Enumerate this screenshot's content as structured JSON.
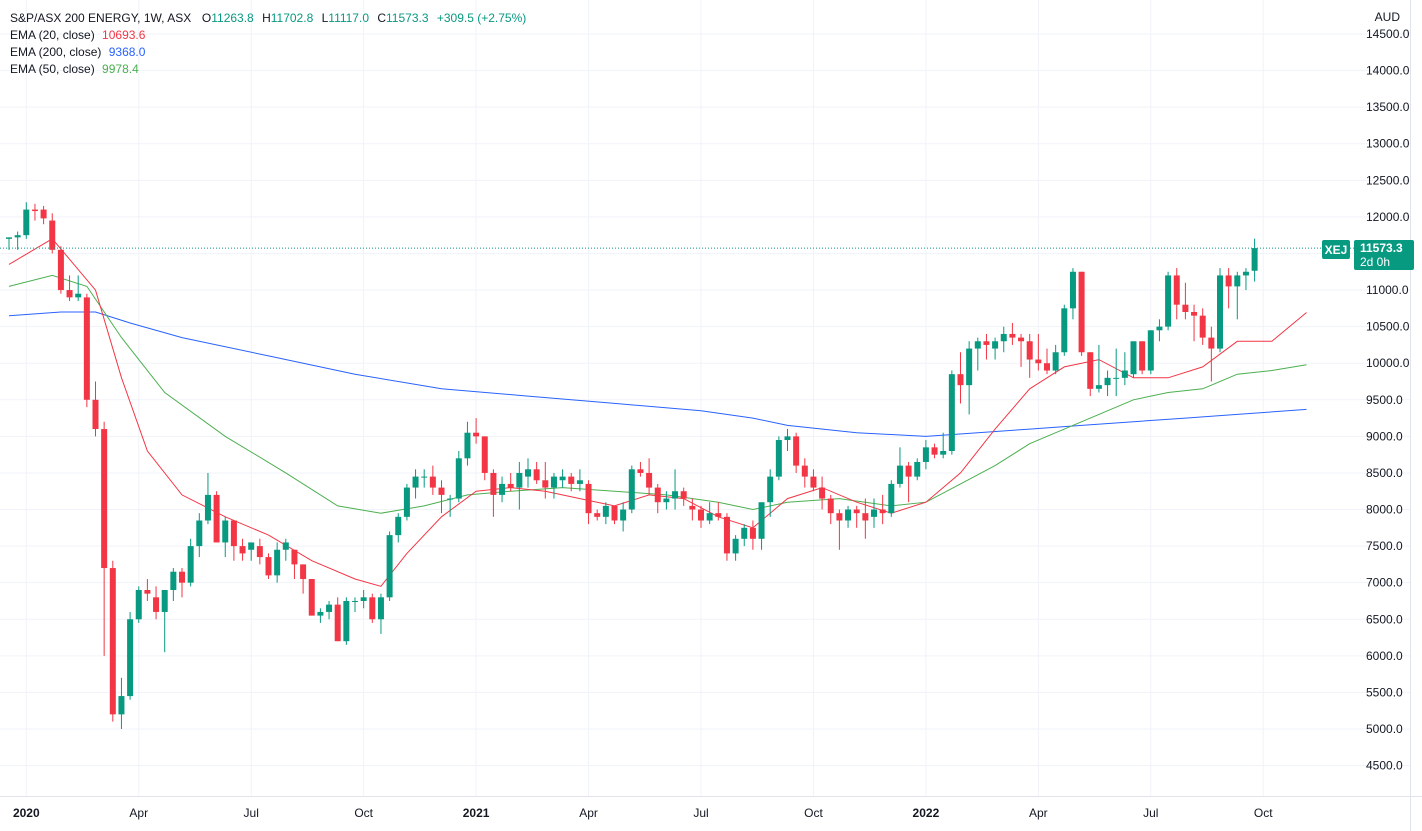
{
  "header": {
    "symbol_line": "S&P/ASX 200 ENERGY, 1W, ASX",
    "ohlc": [
      {
        "key": "O",
        "value": "11263.8"
      },
      {
        "key": "H",
        "value": "11702.8"
      },
      {
        "key": "L",
        "value": "11117.0"
      },
      {
        "key": "C",
        "value": "11573.3"
      }
    ],
    "change": "+309.5 (+2.75%)"
  },
  "indicators": [
    {
      "label": "EMA (20, close)",
      "value": "10693.6",
      "color": "#f23645"
    },
    {
      "label": "EMA (200, close)",
      "value": "9368.0",
      "color": "#2962ff"
    },
    {
      "label": "EMA (50, close)",
      "value": "9978.4",
      "color": "#4caf50"
    }
  ],
  "currency": "AUD",
  "price_tag": {
    "symbol": "XEJ",
    "price": "11573.3",
    "countdown": "2d 0h"
  },
  "colors": {
    "up": "#089981",
    "down": "#f23645",
    "ema20": "#f23645",
    "ema200": "#2962ff",
    "ema50": "#4caf50",
    "grid": "#f0f3fa"
  },
  "chart_data": {
    "type": "candlestick",
    "title": "S&P/ASX 200 ENERGY, 1W, ASX",
    "y_label": "AUD",
    "ylim": [
      4200,
      14650
    ],
    "y_ticks": [
      "4500.0",
      "5000.0",
      "5500.0",
      "6000.0",
      "6500.0",
      "7000.0",
      "7500.0",
      "8000.0",
      "8500.0",
      "9000.0",
      "9500.0",
      "10000.0",
      "10500.0",
      "11000.0",
      "11500.0",
      "12000.0",
      "12500.0",
      "13000.0",
      "13500.0",
      "14000.0",
      "14500.0"
    ],
    "x_ticks": [
      {
        "label": "2020",
        "week": 2,
        "bold": true
      },
      {
        "label": "Apr",
        "week": 15,
        "bold": false
      },
      {
        "label": "Jul",
        "week": 28,
        "bold": false
      },
      {
        "label": "Oct",
        "week": 41,
        "bold": false
      },
      {
        "label": "2021",
        "week": 54,
        "bold": true
      },
      {
        "label": "Apr",
        "week": 67,
        "bold": false
      },
      {
        "label": "Jul",
        "week": 80,
        "bold": false
      },
      {
        "label": "Oct",
        "week": 93,
        "bold": false
      },
      {
        "label": "2022",
        "week": 106,
        "bold": true
      },
      {
        "label": "Apr",
        "week": 119,
        "bold": false
      },
      {
        "label": "Jul",
        "week": 132,
        "bold": false
      },
      {
        "label": "Oct",
        "week": 145,
        "bold": false
      }
    ],
    "candles": [
      [
        11700,
        11720,
        11550,
        11720
      ],
      [
        11720,
        11800,
        11550,
        11750
      ],
      [
        11750,
        12200,
        11700,
        12100
      ],
      [
        12100,
        12180,
        11950,
        12080
      ],
      [
        12100,
        12150,
        11900,
        11980
      ],
      [
        11950,
        12050,
        11500,
        11550
      ],
      [
        11550,
        11600,
        10950,
        11000
      ],
      [
        11000,
        11200,
        10850,
        10900
      ],
      [
        10900,
        11200,
        10850,
        10950
      ],
      [
        10900,
        10950,
        9400,
        9500
      ],
      [
        9500,
        9750,
        9000,
        9100
      ],
      [
        9100,
        9200,
        6000,
        7200
      ],
      [
        7200,
        7300,
        5100,
        5200
      ],
      [
        5200,
        5700,
        5000,
        5450
      ],
      [
        5450,
        6600,
        5400,
        6500
      ],
      [
        6500,
        6950,
        6450,
        6900
      ],
      [
        6900,
        7050,
        6750,
        6850
      ],
      [
        6800,
        6950,
        6500,
        6600
      ],
      [
        6600,
        6900,
        6050,
        6900
      ],
      [
        6900,
        7200,
        6750,
        7150
      ],
      [
        7150,
        7200,
        6800,
        7000
      ],
      [
        7000,
        7600,
        6950,
        7500
      ],
      [
        7500,
        7950,
        7350,
        7850
      ],
      [
        7850,
        8500,
        7800,
        8200
      ],
      [
        8200,
        8250,
        7550,
        7550
      ],
      [
        7550,
        7900,
        7350,
        7850
      ],
      [
        7850,
        7850,
        7300,
        7500
      ],
      [
        7500,
        7600,
        7300,
        7400
      ],
      [
        7450,
        7550,
        7300,
        7550
      ],
      [
        7500,
        7600,
        7250,
        7350
      ],
      [
        7350,
        7400,
        7050,
        7100
      ],
      [
        7100,
        7550,
        7000,
        7450
      ],
      [
        7450,
        7600,
        7300,
        7550
      ],
      [
        7450,
        7450,
        7050,
        7250
      ],
      [
        7250,
        7250,
        6850,
        7050
      ],
      [
        7050,
        7050,
        6550,
        6550
      ],
      [
        6550,
        6650,
        6450,
        6600
      ],
      [
        6600,
        6750,
        6500,
        6700
      ],
      [
        6700,
        6800,
        6200,
        6200
      ],
      [
        6200,
        6800,
        6150,
        6750
      ],
      [
        6750,
        6800,
        6600,
        6750
      ],
      [
        6750,
        6900,
        6650,
        6800
      ],
      [
        6800,
        6850,
        6450,
        6500
      ],
      [
        6500,
        6850,
        6300,
        6800
      ],
      [
        6800,
        7700,
        6750,
        7650
      ],
      [
        7650,
        7950,
        7550,
        7900
      ],
      [
        7900,
        8350,
        7850,
        8300
      ],
      [
        8300,
        8550,
        8150,
        8450
      ],
      [
        8450,
        8550,
        8300,
        8450
      ],
      [
        8450,
        8600,
        8200,
        8300
      ],
      [
        8300,
        8400,
        7950,
        8200
      ],
      [
        8150,
        8200,
        7900,
        8150
      ],
      [
        8150,
        8800,
        8100,
        8700
      ],
      [
        8700,
        9200,
        8600,
        9050
      ],
      [
        9050,
        9250,
        8900,
        9000
      ],
      [
        9000,
        9000,
        8400,
        8500
      ],
      [
        8500,
        8550,
        7900,
        8200
      ],
      [
        8200,
        8450,
        8100,
        8350
      ],
      [
        8350,
        8500,
        8250,
        8300
      ],
      [
        8300,
        8650,
        8000,
        8500
      ],
      [
        8450,
        8700,
        8300,
        8550
      ],
      [
        8550,
        8650,
        8350,
        8400
      ],
      [
        8400,
        8650,
        8150,
        8300
      ],
      [
        8300,
        8500,
        8150,
        8450
      ],
      [
        8400,
        8550,
        8300,
        8450
      ],
      [
        8450,
        8500,
        8250,
        8350
      ],
      [
        8350,
        8550,
        8250,
        8400
      ],
      [
        8350,
        8400,
        7800,
        7950
      ],
      [
        7950,
        8000,
        7850,
        7900
      ],
      [
        7900,
        8100,
        7800,
        8050
      ],
      [
        8050,
        8050,
        7800,
        7850
      ],
      [
        7850,
        8100,
        7700,
        8000
      ],
      [
        8000,
        8600,
        7950,
        8550
      ],
      [
        8550,
        8650,
        8450,
        8500
      ],
      [
        8500,
        8700,
        8200,
        8300
      ],
      [
        8300,
        8350,
        7950,
        8100
      ],
      [
        8100,
        8250,
        8000,
        8150
      ],
      [
        8150,
        8550,
        8000,
        8250
      ],
      [
        8250,
        8300,
        8050,
        8150
      ],
      [
        8050,
        8150,
        7850,
        8000
      ],
      [
        8000,
        8050,
        7750,
        7850
      ],
      [
        7850,
        8100,
        7800,
        7950
      ],
      [
        7950,
        8100,
        7850,
        7900
      ],
      [
        7900,
        7950,
        7300,
        7400
      ],
      [
        7400,
        7650,
        7300,
        7600
      ],
      [
        7600,
        7800,
        7500,
        7750
      ],
      [
        7750,
        7850,
        7450,
        7600
      ],
      [
        7600,
        8000,
        7450,
        8100
      ],
      [
        8100,
        8550,
        7900,
        8450
      ],
      [
        8450,
        9000,
        8400,
        8950
      ],
      [
        8950,
        9100,
        8800,
        9000
      ],
      [
        9000,
        9050,
        8500,
        8600
      ],
      [
        8600,
        8700,
        8300,
        8450
      ],
      [
        8450,
        8550,
        8250,
        8300
      ],
      [
        8300,
        8450,
        8000,
        8150
      ],
      [
        8150,
        8200,
        7800,
        7950
      ],
      [
        7950,
        8000,
        7450,
        7850
      ],
      [
        7850,
        8050,
        7750,
        8000
      ],
      [
        8000,
        8050,
        7750,
        7950
      ],
      [
        7950,
        8150,
        7600,
        7850
      ],
      [
        7900,
        8150,
        7750,
        8000
      ],
      [
        8000,
        8200,
        7800,
        7950
      ],
      [
        7950,
        8400,
        7900,
        8350
      ],
      [
        8350,
        8850,
        8300,
        8600
      ],
      [
        8600,
        8650,
        8100,
        8450
      ],
      [
        8450,
        8700,
        8400,
        8650
      ],
      [
        8650,
        8950,
        8550,
        8850
      ],
      [
        8850,
        8900,
        8700,
        8750
      ],
      [
        8750,
        9050,
        8700,
        8800
      ],
      [
        8800,
        9900,
        8750,
        9850
      ],
      [
        9850,
        10150,
        9450,
        9700
      ],
      [
        9700,
        10300,
        9300,
        10200
      ],
      [
        10200,
        10350,
        9900,
        10300
      ],
      [
        10300,
        10400,
        10050,
        10250
      ],
      [
        10200,
        10350,
        10050,
        10300
      ],
      [
        10300,
        10500,
        10150,
        10400
      ],
      [
        10400,
        10550,
        10250,
        10350
      ],
      [
        10350,
        10400,
        9950,
        10300
      ],
      [
        10300,
        10400,
        9800,
        10050
      ],
      [
        10050,
        10400,
        9900,
        10000
      ],
      [
        10000,
        10200,
        9850,
        9900
      ],
      [
        9900,
        10250,
        9850,
        10150
      ],
      [
        10150,
        10800,
        10100,
        10750
      ],
      [
        10750,
        11300,
        10600,
        11250
      ],
      [
        11250,
        11250,
        10100,
        10150
      ],
      [
        10150,
        10150,
        9550,
        9650
      ],
      [
        9650,
        10250,
        9600,
        9700
      ],
      [
        9700,
        9900,
        9550,
        9800
      ],
      [
        9800,
        10200,
        9550,
        9800
      ],
      [
        9800,
        10150,
        9700,
        9900
      ],
      [
        9850,
        10250,
        9800,
        10300
      ],
      [
        10300,
        10300,
        9850,
        9900
      ],
      [
        9900,
        10450,
        9850,
        10450
      ],
      [
        10450,
        10600,
        10300,
        10500
      ],
      [
        10500,
        11250,
        10450,
        11200
      ],
      [
        11200,
        11300,
        10600,
        10800
      ],
      [
        10800,
        11100,
        10600,
        10700
      ],
      [
        10700,
        10800,
        10300,
        10650
      ],
      [
        10650,
        10750,
        10250,
        10350
      ],
      [
        10350,
        10500,
        9750,
        10200
      ],
      [
        10200,
        11300,
        10150,
        11200
      ],
      [
        11200,
        11300,
        10750,
        11050
      ],
      [
        11050,
        11250,
        10600,
        11200
      ],
      [
        11200,
        11300,
        11000,
        11250
      ],
      [
        11263.8,
        11702.8,
        11117.0,
        11573.3
      ]
    ],
    "ema20": [
      [
        0,
        11350
      ],
      [
        5,
        11700
      ],
      [
        10,
        11000
      ],
      [
        13,
        9800
      ],
      [
        16,
        8800
      ],
      [
        20,
        8200
      ],
      [
        25,
        7900
      ],
      [
        30,
        7650
      ],
      [
        35,
        7300
      ],
      [
        40,
        7050
      ],
      [
        43,
        6950
      ],
      [
        46,
        7400
      ],
      [
        50,
        7900
      ],
      [
        54,
        8250
      ],
      [
        58,
        8300
      ],
      [
        62,
        8250
      ],
      [
        66,
        8150
      ],
      [
        70,
        8050
      ],
      [
        74,
        8200
      ],
      [
        78,
        8150
      ],
      [
        82,
        7900
      ],
      [
        86,
        7750
      ],
      [
        90,
        8150
      ],
      [
        94,
        8300
      ],
      [
        98,
        8100
      ],
      [
        102,
        7950
      ],
      [
        106,
        8100
      ],
      [
        110,
        8500
      ],
      [
        114,
        9100
      ],
      [
        118,
        9650
      ],
      [
        122,
        9950
      ],
      [
        126,
        10050
      ],
      [
        130,
        9800
      ],
      [
        134,
        9800
      ],
      [
        138,
        9950
      ],
      [
        142,
        10300
      ],
      [
        146,
        10300
      ],
      [
        150,
        10693.6
      ]
    ],
    "ema50": [
      [
        0,
        11050
      ],
      [
        5,
        11200
      ],
      [
        9,
        11050
      ],
      [
        13,
        10350
      ],
      [
        18,
        9600
      ],
      [
        25,
        9000
      ],
      [
        32,
        8500
      ],
      [
        38,
        8050
      ],
      [
        43,
        7950
      ],
      [
        48,
        8050
      ],
      [
        53,
        8200
      ],
      [
        58,
        8250
      ],
      [
        64,
        8300
      ],
      [
        70,
        8250
      ],
      [
        76,
        8200
      ],
      [
        82,
        8100
      ],
      [
        86,
        8000
      ],
      [
        90,
        8100
      ],
      [
        96,
        8150
      ],
      [
        102,
        8050
      ],
      [
        106,
        8100
      ],
      [
        110,
        8350
      ],
      [
        114,
        8600
      ],
      [
        118,
        8900
      ],
      [
        122,
        9100
      ],
      [
        126,
        9300
      ],
      [
        130,
        9500
      ],
      [
        134,
        9600
      ],
      [
        138,
        9650
      ],
      [
        142,
        9850
      ],
      [
        146,
        9900
      ],
      [
        150,
        9978.4
      ]
    ],
    "ema200": [
      [
        0,
        10650
      ],
      [
        6,
        10700
      ],
      [
        10,
        10700
      ],
      [
        14,
        10550
      ],
      [
        20,
        10350
      ],
      [
        30,
        10100
      ],
      [
        40,
        9850
      ],
      [
        50,
        9650
      ],
      [
        60,
        9550
      ],
      [
        70,
        9450
      ],
      [
        80,
        9350
      ],
      [
        86,
        9250
      ],
      [
        90,
        9150
      ],
      [
        98,
        9050
      ],
      [
        106,
        9000
      ],
      [
        112,
        9050
      ],
      [
        118,
        9100
      ],
      [
        124,
        9150
      ],
      [
        130,
        9200
      ],
      [
        136,
        9250
      ],
      [
        142,
        9300
      ],
      [
        150,
        9368.0
      ]
    ]
  }
}
